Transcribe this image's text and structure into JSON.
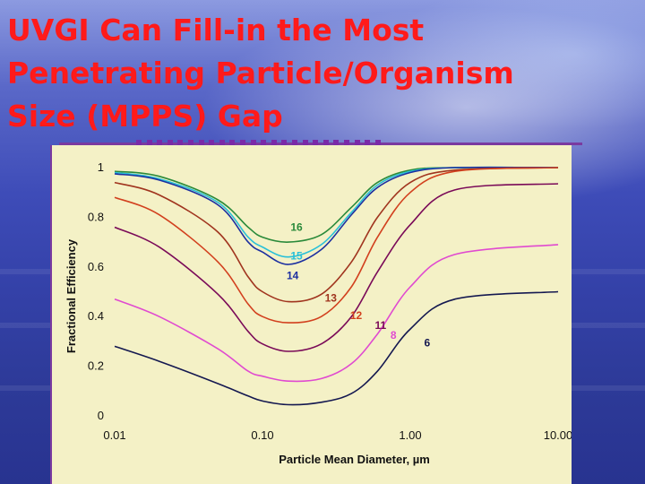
{
  "slide": {
    "title": "UVGI Can Fill-in the Most Penetrating Particle/Organism Size  (MPPS) Gap"
  },
  "colors": {
    "title": "#ff1a1a",
    "bars": "#7a2aa8",
    "panel": "#f4f1c6"
  },
  "chart_data": {
    "type": "line",
    "xlabel": "Particle Mean Diameter, µm",
    "ylabel": "Fractional Efficiency",
    "x_scale": "log",
    "xlim": [
      0.01,
      10.0
    ],
    "ylim": [
      0,
      1
    ],
    "x_ticks": [
      "0.01",
      "0.10",
      "1.00",
      "10.00"
    ],
    "y_ticks": [
      "0",
      "0.2",
      "0.4",
      "0.6",
      "0.8",
      "1"
    ],
    "grid": false,
    "series": [
      {
        "name": "16",
        "color": "#2a8a3a",
        "values": [
          [
            0.01,
            0.985
          ],
          [
            0.02,
            0.965
          ],
          [
            0.05,
            0.87
          ],
          [
            0.08,
            0.76
          ],
          [
            0.1,
            0.72
          ],
          [
            0.15,
            0.7
          ],
          [
            0.25,
            0.73
          ],
          [
            0.4,
            0.84
          ],
          [
            0.6,
            0.94
          ],
          [
            1.0,
            0.99
          ],
          [
            2.0,
            1.0
          ],
          [
            10.0,
            1.0
          ]
        ]
      },
      {
        "name": "15",
        "color": "#29c0d8",
        "values": [
          [
            0.01,
            0.98
          ],
          [
            0.02,
            0.955
          ],
          [
            0.05,
            0.86
          ],
          [
            0.08,
            0.72
          ],
          [
            0.1,
            0.68
          ],
          [
            0.15,
            0.64
          ],
          [
            0.25,
            0.69
          ],
          [
            0.4,
            0.82
          ],
          [
            0.6,
            0.93
          ],
          [
            1.0,
            0.985
          ],
          [
            2.0,
            1.0
          ],
          [
            10.0,
            1.0
          ]
        ]
      },
      {
        "name": "14",
        "color": "#1c2fa0",
        "values": [
          [
            0.01,
            0.975
          ],
          [
            0.02,
            0.95
          ],
          [
            0.05,
            0.85
          ],
          [
            0.08,
            0.7
          ],
          [
            0.1,
            0.66
          ],
          [
            0.15,
            0.61
          ],
          [
            0.25,
            0.67
          ],
          [
            0.4,
            0.81
          ],
          [
            0.6,
            0.92
          ],
          [
            1.0,
            0.98
          ],
          [
            2.0,
            1.0
          ],
          [
            10.0,
            1.0
          ]
        ]
      },
      {
        "name": "13",
        "color": "#a0341e",
        "values": [
          [
            0.01,
            0.94
          ],
          [
            0.02,
            0.89
          ],
          [
            0.05,
            0.74
          ],
          [
            0.08,
            0.56
          ],
          [
            0.1,
            0.5
          ],
          [
            0.15,
            0.46
          ],
          [
            0.25,
            0.49
          ],
          [
            0.4,
            0.62
          ],
          [
            0.6,
            0.8
          ],
          [
            1.0,
            0.94
          ],
          [
            2.0,
            0.99
          ],
          [
            10.0,
            1.0
          ]
        ]
      },
      {
        "name": "12",
        "color": "#d2401e",
        "values": [
          [
            0.01,
            0.88
          ],
          [
            0.02,
            0.81
          ],
          [
            0.05,
            0.62
          ],
          [
            0.08,
            0.45
          ],
          [
            0.1,
            0.4
          ],
          [
            0.15,
            0.375
          ],
          [
            0.25,
            0.4
          ],
          [
            0.4,
            0.52
          ],
          [
            0.6,
            0.72
          ],
          [
            1.0,
            0.9
          ],
          [
            2.0,
            0.985
          ],
          [
            10.0,
            1.0
          ]
        ]
      },
      {
        "name": "11",
        "color": "#7a0a58",
        "values": [
          [
            0.01,
            0.76
          ],
          [
            0.02,
            0.68
          ],
          [
            0.05,
            0.49
          ],
          [
            0.08,
            0.34
          ],
          [
            0.1,
            0.29
          ],
          [
            0.15,
            0.26
          ],
          [
            0.25,
            0.29
          ],
          [
            0.4,
            0.4
          ],
          [
            0.6,
            0.58
          ],
          [
            1.0,
            0.77
          ],
          [
            2.0,
            0.91
          ],
          [
            10.0,
            0.935
          ]
        ]
      },
      {
        "name": "8",
        "color": "#e04ad0",
        "values": [
          [
            0.01,
            0.47
          ],
          [
            0.02,
            0.4
          ],
          [
            0.05,
            0.27
          ],
          [
            0.08,
            0.18
          ],
          [
            0.1,
            0.16
          ],
          [
            0.15,
            0.14
          ],
          [
            0.25,
            0.15
          ],
          [
            0.4,
            0.21
          ],
          [
            0.6,
            0.33
          ],
          [
            1.0,
            0.52
          ],
          [
            2.0,
            0.65
          ],
          [
            10.0,
            0.69
          ]
        ]
      },
      {
        "name": "6",
        "color": "#141850",
        "values": [
          [
            0.01,
            0.28
          ],
          [
            0.02,
            0.22
          ],
          [
            0.05,
            0.13
          ],
          [
            0.08,
            0.08
          ],
          [
            0.1,
            0.06
          ],
          [
            0.15,
            0.045
          ],
          [
            0.25,
            0.055
          ],
          [
            0.4,
            0.09
          ],
          [
            0.6,
            0.18
          ],
          [
            1.0,
            0.35
          ],
          [
            2.0,
            0.47
          ],
          [
            10.0,
            0.5
          ]
        ]
      }
    ]
  }
}
